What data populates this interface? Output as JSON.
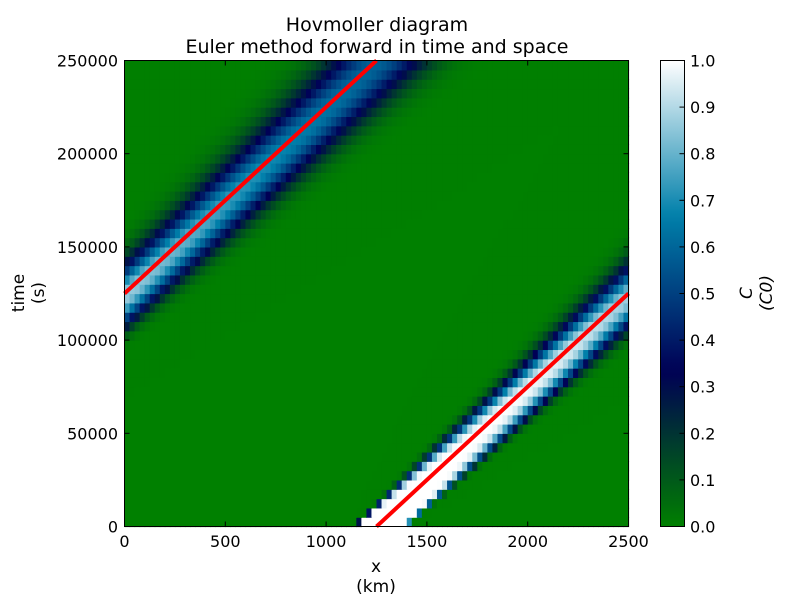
{
  "chart_data": {
    "type": "heatmap",
    "title": [
      "Hovmoller diagram",
      "Euler method forward in time and space"
    ],
    "xlabel": [
      "x",
      "(km)"
    ],
    "ylabel": [
      "time",
      "(s)"
    ],
    "colorbar_label": [
      "C",
      "(C0)"
    ],
    "xlim": [
      0,
      2500
    ],
    "ylim": [
      0,
      250000
    ],
    "clim": [
      0,
      1
    ],
    "x_ticks": [
      0,
      500,
      1000,
      1500,
      2000,
      2500
    ],
    "y_ticks": [
      0,
      50000,
      100000,
      150000,
      200000,
      250000
    ],
    "colorbar_ticks": [
      "0.0",
      "0.1",
      "0.2",
      "0.3",
      "0.4",
      "0.5",
      "0.6",
      "0.7",
      "0.8",
      "0.9",
      "1.0"
    ],
    "colormap": "ocean",
    "background_color": "#008000",
    "periodic_domain": true,
    "initial_pulse": {
      "x_start": 1140,
      "x_end": 1390,
      "amplitude": 1.0
    },
    "advection_speed_km_per_s": 0.01,
    "analytic_line": {
      "color": "#ff0000",
      "segments": [
        {
          "x": [
            1250,
            2500
          ],
          "y": [
            0,
            125000
          ]
        },
        {
          "x": [
            0,
            1250
          ],
          "y": [
            125000,
            250000
          ]
        }
      ]
    }
  }
}
